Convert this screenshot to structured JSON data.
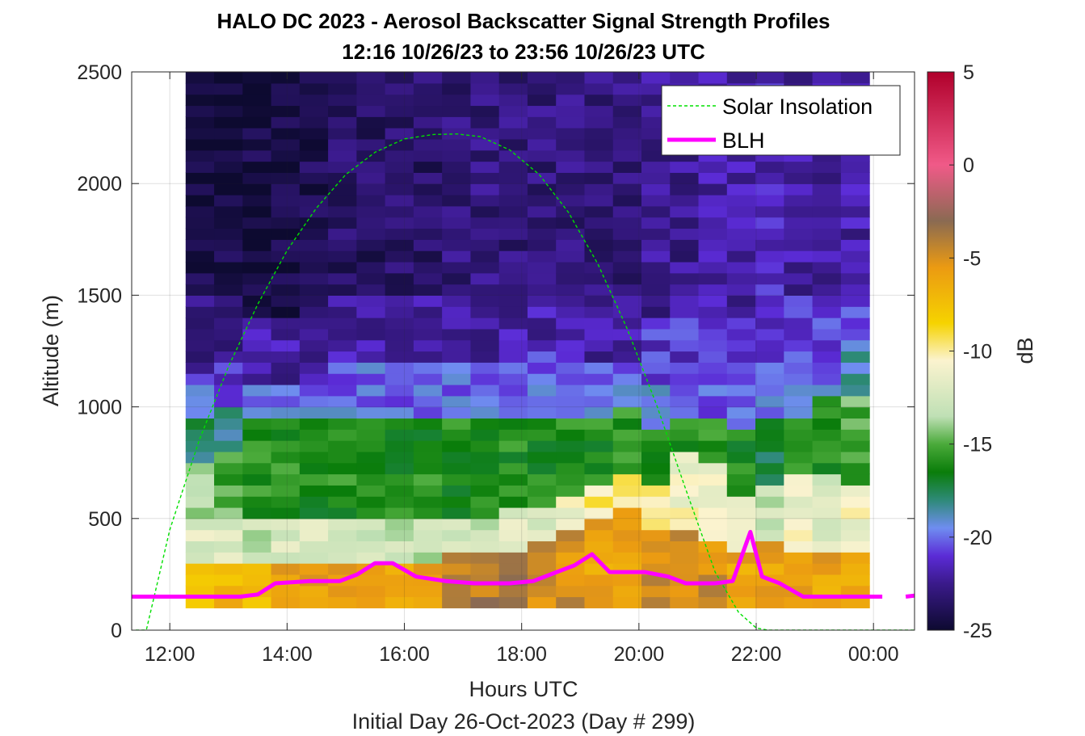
{
  "chart_data": {
    "type": "heatmap",
    "title": "HALO DC 2023 - Aerosol Backscatter Signal Strength Profiles",
    "subtitle": "12:16 10/26/23 to 23:56 10/26/23  UTC",
    "xlabel": "Hours UTC",
    "ylabel": "Altitude (m)",
    "footer": "Initial Day 26-Oct-2023 (Day # 299)",
    "colorbar_label": "dB",
    "xlim": [
      11.35,
      24.7
    ],
    "ylim": [
      0,
      2500
    ],
    "x_ticks": [
      12,
      14,
      16,
      18,
      20,
      22,
      24
    ],
    "x_tick_labels": [
      "12:00",
      "14:00",
      "16:00",
      "18:00",
      "20:00",
      "22:00",
      "00:00"
    ],
    "y_ticks": [
      0,
      500,
      1000,
      1500,
      2000,
      2500
    ],
    "y_tick_labels": [
      "0",
      "500",
      "1000",
      "1500",
      "2000",
      "2500"
    ],
    "clim": [
      -25,
      5
    ],
    "colorbar_ticks": [
      5,
      0,
      -5,
      -10,
      -15,
      -20,
      -25
    ],
    "colorbar_tick_labels": [
      "5",
      "0",
      "-5",
      "-10",
      "-15",
      "-20",
      "-25"
    ],
    "grid": true,
    "legend": {
      "placement": "top-right",
      "entries": [
        "Solar Insolation",
        "BLH"
      ]
    },
    "heatmap": {
      "x_start": 12.27,
      "x_end": 23.93,
      "columns": 24,
      "y_bottom": 100,
      "bin_height_m": 50,
      "rows": 48,
      "profiles": [
        [
          {
            "top": 300,
            "db": -7
          },
          {
            "top": 500,
            "db": -12
          },
          {
            "top": 750,
            "db": -14
          },
          {
            "top": 950,
            "db": -18
          },
          {
            "top": 1150,
            "db": -20
          },
          {
            "top": 1500,
            "db": -23
          },
          {
            "top": 2500,
            "db": -24.5
          }
        ],
        [
          {
            "top": 300,
            "db": -7
          },
          {
            "top": 500,
            "db": -12
          },
          {
            "top": 800,
            "db": -15
          },
          {
            "top": 1000,
            "db": -18
          },
          {
            "top": 1200,
            "db": -21
          },
          {
            "top": 1500,
            "db": -23
          },
          {
            "top": 2500,
            "db": -24.5
          }
        ],
        [
          {
            "top": 300,
            "db": -7
          },
          {
            "top": 500,
            "db": -13
          },
          {
            "top": 950,
            "db": -16
          },
          {
            "top": 1100,
            "db": -20
          },
          {
            "top": 1400,
            "db": -22
          },
          {
            "top": 2500,
            "db": -24.5
          }
        ],
        [
          {
            "top": 300,
            "db": -6
          },
          {
            "top": 500,
            "db": -12
          },
          {
            "top": 950,
            "db": -16
          },
          {
            "top": 1100,
            "db": -20
          },
          {
            "top": 1400,
            "db": -22
          },
          {
            "top": 2500,
            "db": -24.5
          }
        ],
        [
          {
            "top": 300,
            "db": -6
          },
          {
            "top": 500,
            "db": -12
          },
          {
            "top": 950,
            "db": -16
          },
          {
            "top": 1100,
            "db": -20
          },
          {
            "top": 1400,
            "db": -22
          },
          {
            "top": 2500,
            "db": -24
          }
        ],
        [
          {
            "top": 300,
            "db": -6
          },
          {
            "top": 500,
            "db": -12
          },
          {
            "top": 950,
            "db": -16
          },
          {
            "top": 1250,
            "db": -20
          },
          {
            "top": 1500,
            "db": -22
          },
          {
            "top": 2500,
            "db": -23.5
          }
        ],
        [
          {
            "top": 300,
            "db": -6
          },
          {
            "top": 500,
            "db": -13
          },
          {
            "top": 950,
            "db": -16
          },
          {
            "top": 1200,
            "db": -20
          },
          {
            "top": 1500,
            "db": -22
          },
          {
            "top": 2500,
            "db": -23.5
          }
        ],
        [
          {
            "top": 300,
            "db": -6
          },
          {
            "top": 500,
            "db": -13
          },
          {
            "top": 950,
            "db": -16
          },
          {
            "top": 1200,
            "db": -20
          },
          {
            "top": 1500,
            "db": -22
          },
          {
            "top": 2500,
            "db": -23.5
          }
        ],
        [
          {
            "top": 300,
            "db": -6
          },
          {
            "top": 500,
            "db": -13
          },
          {
            "top": 950,
            "db": -16
          },
          {
            "top": 1200,
            "db": -20
          },
          {
            "top": 1500,
            "db": -22
          },
          {
            "top": 2500,
            "db": -23.5
          }
        ],
        [
          {
            "top": 350,
            "db": -4
          },
          {
            "top": 500,
            "db": -13
          },
          {
            "top": 950,
            "db": -16
          },
          {
            "top": 1200,
            "db": -20
          },
          {
            "top": 1500,
            "db": -22
          },
          {
            "top": 2500,
            "db": -23
          }
        ],
        [
          {
            "top": 350,
            "db": -4
          },
          {
            "top": 500,
            "db": -13
          },
          {
            "top": 950,
            "db": -16
          },
          {
            "top": 1200,
            "db": -20
          },
          {
            "top": 1500,
            "db": -22
          },
          {
            "top": 2500,
            "db": -23
          }
        ],
        [
          {
            "top": 350,
            "db": -4
          },
          {
            "top": 550,
            "db": -12
          },
          {
            "top": 950,
            "db": -16
          },
          {
            "top": 1200,
            "db": -20
          },
          {
            "top": 1500,
            "db": -22
          },
          {
            "top": 2500,
            "db": -23
          }
        ],
        [
          {
            "top": 400,
            "db": -5
          },
          {
            "top": 550,
            "db": -12
          },
          {
            "top": 950,
            "db": -16
          },
          {
            "top": 1250,
            "db": -20
          },
          {
            "top": 1500,
            "db": -22
          },
          {
            "top": 2500,
            "db": -23
          }
        ],
        [
          {
            "top": 450,
            "db": -5
          },
          {
            "top": 600,
            "db": -11
          },
          {
            "top": 950,
            "db": -16
          },
          {
            "top": 1250,
            "db": -20
          },
          {
            "top": 1500,
            "db": -22
          },
          {
            "top": 2500,
            "db": -23
          }
        ],
        [
          {
            "top": 500,
            "db": -6
          },
          {
            "top": 650,
            "db": -10
          },
          {
            "top": 950,
            "db": -16
          },
          {
            "top": 1200,
            "db": -20
          },
          {
            "top": 1500,
            "db": -22
          },
          {
            "top": 2500,
            "db": -23
          }
        ],
        [
          {
            "top": 550,
            "db": -6
          },
          {
            "top": 700,
            "db": -10
          },
          {
            "top": 1000,
            "db": -16
          },
          {
            "top": 1200,
            "db": -20
          },
          {
            "top": 1500,
            "db": -22
          },
          {
            "top": 2500,
            "db": -23
          }
        ],
        [
          {
            "top": 450,
            "db": -5
          },
          {
            "top": 650,
            "db": -10
          },
          {
            "top": 900,
            "db": -16
          },
          {
            "top": 1100,
            "db": -19
          },
          {
            "top": 1400,
            "db": -21
          },
          {
            "top": 2500,
            "db": -22.5
          }
        ],
        [
          {
            "top": 450,
            "db": -5
          },
          {
            "top": 800,
            "db": -11
          },
          {
            "top": 950,
            "db": -16
          },
          {
            "top": 1150,
            "db": -20
          },
          {
            "top": 1400,
            "db": -21
          },
          {
            "top": 2500,
            "db": -22.5
          }
        ],
        [
          {
            "top": 400,
            "db": -5
          },
          {
            "top": 750,
            "db": -11
          },
          {
            "top": 950,
            "db": -16
          },
          {
            "top": 1200,
            "db": -20
          },
          {
            "top": 1400,
            "db": -21
          },
          {
            "top": 2500,
            "db": -22
          }
        ],
        [
          {
            "top": 350,
            "db": -6
          },
          {
            "top": 600,
            "db": -12
          },
          {
            "top": 900,
            "db": -16
          },
          {
            "top": 1150,
            "db": -20
          },
          {
            "top": 1400,
            "db": -21
          },
          {
            "top": 2500,
            "db": -22
          }
        ],
        [
          {
            "top": 400,
            "db": -6
          },
          {
            "top": 650,
            "db": -13
          },
          {
            "top": 950,
            "db": -17
          },
          {
            "top": 1200,
            "db": -20
          },
          {
            "top": 1500,
            "db": -21
          },
          {
            "top": 2500,
            "db": -21.5
          }
        ],
        [
          {
            "top": 350,
            "db": -6
          },
          {
            "top": 700,
            "db": -11
          },
          {
            "top": 950,
            "db": -16
          },
          {
            "top": 1250,
            "db": -20
          },
          {
            "top": 1500,
            "db": -21
          },
          {
            "top": 2500,
            "db": -22
          }
        ],
        [
          {
            "top": 350,
            "db": -6
          },
          {
            "top": 700,
            "db": -12
          },
          {
            "top": 1050,
            "db": -16
          },
          {
            "top": 1250,
            "db": -20
          },
          {
            "top": 1500,
            "db": -21
          },
          {
            "top": 2500,
            "db": -22
          }
        ],
        [
          {
            "top": 350,
            "db": -6
          },
          {
            "top": 650,
            "db": -11
          },
          {
            "top": 1050,
            "db": -15
          },
          {
            "top": 1300,
            "db": -19
          },
          {
            "top": 1500,
            "db": -21
          },
          {
            "top": 2500,
            "db": -22
          }
        ]
      ]
    },
    "series": [
      {
        "name": "Solar Insolation",
        "type": "line",
        "color": "#00e000",
        "style": "dashed",
        "x": [
          11.42,
          11.6,
          12.0,
          12.5,
          13.0,
          13.5,
          14.0,
          14.5,
          15.0,
          15.5,
          16.0,
          16.5,
          16.9,
          17.3,
          17.8,
          18.3,
          18.8,
          19.3,
          19.8,
          20.3,
          20.8,
          21.3,
          21.7,
          22.0,
          22.2,
          22.35,
          24.7
        ],
        "y": [
          0,
          0,
          450,
          850,
          1180,
          1460,
          1700,
          1890,
          2040,
          2140,
          2200,
          2220,
          2222,
          2210,
          2150,
          2040,
          1870,
          1640,
          1350,
          1010,
          630,
          260,
          80,
          10,
          0,
          0,
          0
        ]
      },
      {
        "name": "BLH",
        "type": "line",
        "color": "#ff00ff",
        "style": "solid",
        "segments": [
          {
            "x": [
              11.35,
              13.2,
              13.5,
              13.8,
              14.4,
              14.9,
              15.2,
              15.5,
              15.8,
              16.2,
              16.7,
              17.2,
              17.8,
              18.2,
              18.6,
              18.9,
              19.2,
              19.5,
              20.1,
              20.5,
              20.8,
              21.3,
              21.6,
              21.9,
              22.1,
              22.4,
              22.8,
              23.2,
              23.8,
              24.15
            ],
            "y": [
              150,
              150,
              160,
              210,
              220,
              220,
              250,
              300,
              300,
              240,
              220,
              210,
              210,
              220,
              260,
              290,
              340,
              260,
              260,
              240,
              210,
              210,
              220,
              440,
              240,
              210,
              150,
              150,
              150,
              150
            ]
          },
          {
            "x": [
              24.55,
              24.7
            ],
            "y": [
              150,
              155
            ]
          }
        ]
      }
    ]
  }
}
